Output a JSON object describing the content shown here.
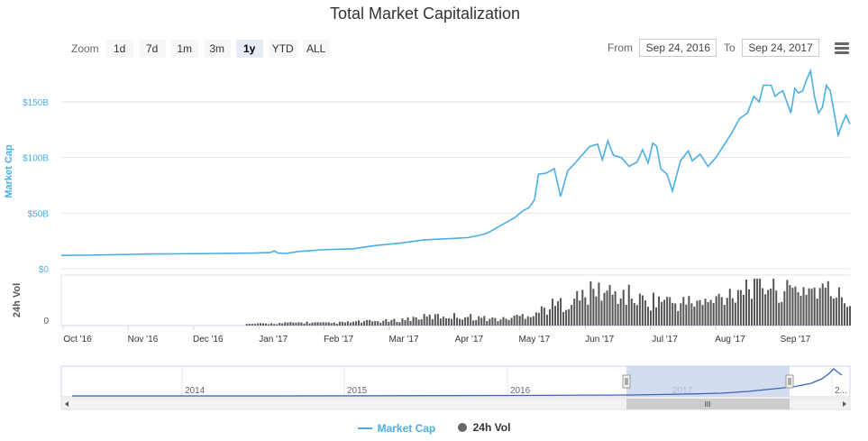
{
  "title": "Total Market Capitalization",
  "zoom": {
    "label": "Zoom",
    "buttons": [
      "1d",
      "7d",
      "1m",
      "3m",
      "1y",
      "YTD",
      "ALL"
    ],
    "active": "1y"
  },
  "range": {
    "from_label": "From",
    "from_value": "Sep 24, 2016",
    "to_label": "To",
    "to_value": "Sep 24, 2017"
  },
  "menu_icon": "hamburger-icon",
  "colors": {
    "market_cap": "#4aaee3",
    "volume": "#555555",
    "navigator_line": "#3a66b7",
    "navigator_mask": "#c9d5ec"
  },
  "navigator": {
    "year_labels": [
      "2014",
      "2015",
      "2016",
      "2017",
      "2..."
    ]
  },
  "chart_data": {
    "type": "line",
    "ylabel": "Market Cap",
    "ylabel2": "24h Vol",
    "y_ticks": [
      "$0",
      "$50B",
      "$100B",
      "$150B"
    ],
    "y_tick_values": [
      0,
      50,
      100,
      150
    ],
    "vol_tick": "0",
    "ylim": [
      0,
      180
    ],
    "x_ticks": [
      "Oct '16",
      "Nov '16",
      "Dec '16",
      "Jan '17",
      "Feb '17",
      "Mar '17",
      "Apr '17",
      "May '17",
      "Jun '17",
      "Jul '17",
      "Aug '17",
      "Sep '17"
    ],
    "grid": true,
    "legend_position": "bottom",
    "series": [
      {
        "name": "Market Cap",
        "x": [
          0,
          0.03,
          0.06,
          0.09,
          0.11,
          0.15,
          0.2,
          0.24,
          0.265,
          0.27,
          0.275,
          0.285,
          0.3,
          0.33,
          0.37,
          0.4,
          0.43,
          0.46,
          0.49,
          0.515,
          0.53,
          0.54,
          0.56,
          0.575,
          0.585,
          0.593,
          0.6,
          0.605,
          0.615,
          0.625,
          0.633,
          0.642,
          0.65,
          0.66,
          0.67,
          0.68,
          0.686,
          0.693,
          0.7,
          0.71,
          0.72,
          0.73,
          0.737,
          0.744,
          0.75,
          0.755,
          0.76,
          0.768,
          0.775,
          0.785,
          0.795,
          0.8,
          0.81,
          0.82,
          0.83,
          0.84,
          0.85,
          0.86,
          0.87,
          0.878,
          0.885,
          0.89,
          0.9,
          0.905,
          0.91,
          0.915,
          0.92,
          0.925,
          0.93,
          0.935,
          0.94,
          0.945,
          0.95,
          0.955,
          0.96,
          0.965,
          0.97,
          0.975,
          0.98,
          0.985,
          0.99,
          0.995,
          1.0
        ],
        "values": [
          12,
          12.2,
          12.5,
          13,
          13.3,
          13.5,
          13.8,
          14,
          14.5,
          16,
          14,
          13.8,
          15.5,
          17,
          18,
          21,
          23,
          26,
          27,
          28,
          30,
          32,
          40,
          46,
          52,
          55,
          62,
          85,
          86,
          90,
          65,
          88,
          94,
          102,
          110,
          112,
          98,
          115,
          102,
          100,
          92,
          96,
          107,
          95,
          113,
          110,
          90,
          85,
          70,
          97,
          106,
          97,
          103,
          92,
          100,
          111,
          122,
          135,
          140,
          155,
          150,
          165,
          165,
          155,
          158,
          160,
          150,
          140,
          162,
          158,
          160,
          170,
          178,
          155,
          140,
          145,
          165,
          160,
          140,
          120,
          130,
          138,
          130
        ]
      },
      {
        "name": "24h Vol",
        "density_note": "bars",
        "x": [
          0.24,
          0.28,
          0.31,
          0.34,
          0.38,
          0.42,
          0.45,
          0.48,
          0.5,
          0.52,
          0.54,
          0.56,
          0.58,
          0.6,
          0.62,
          0.64,
          0.66,
          0.68,
          0.7,
          0.72,
          0.74,
          0.76,
          0.78,
          0.8,
          0.82,
          0.84,
          0.86,
          0.88,
          0.9,
          0.92,
          0.94,
          0.96,
          0.98,
          1.0
        ],
        "values": [
          2,
          3,
          4,
          3,
          5,
          6,
          10,
          12,
          12,
          11,
          9,
          8,
          12,
          16,
          24,
          30,
          36,
          45,
          40,
          38,
          30,
          34,
          28,
          30,
          28,
          38,
          48,
          56,
          52,
          42,
          48,
          46,
          42,
          28
        ]
      }
    ]
  }
}
